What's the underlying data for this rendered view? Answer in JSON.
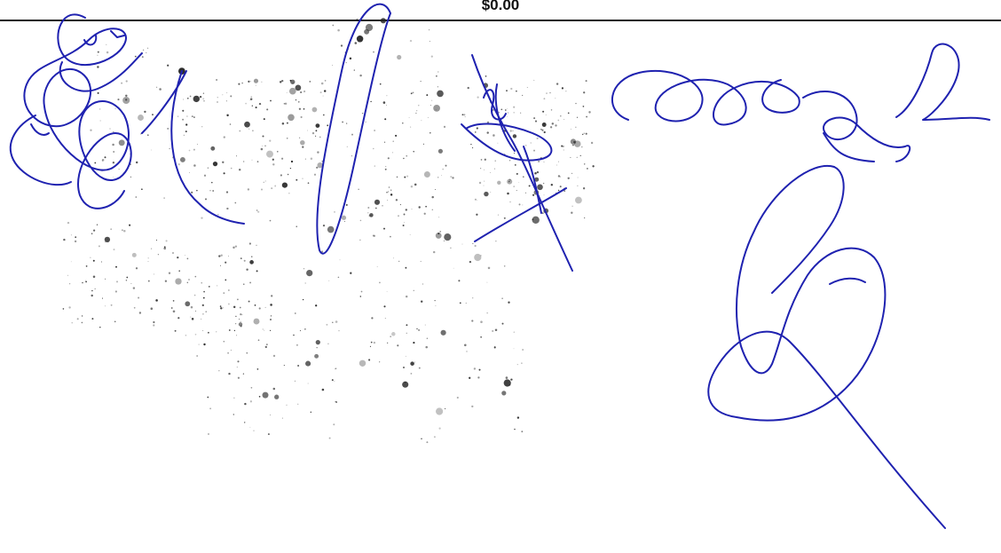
{
  "document": {
    "amount_text": "$0.00"
  },
  "colors": {
    "ink_blue": "#1f22b0",
    "ink_black": "#111111",
    "rule": "#1a1a1a",
    "background": "#ffffff"
  },
  "graphics": {
    "signature": "handwritten-signature",
    "speckle": "scanner-speckle-noise"
  }
}
